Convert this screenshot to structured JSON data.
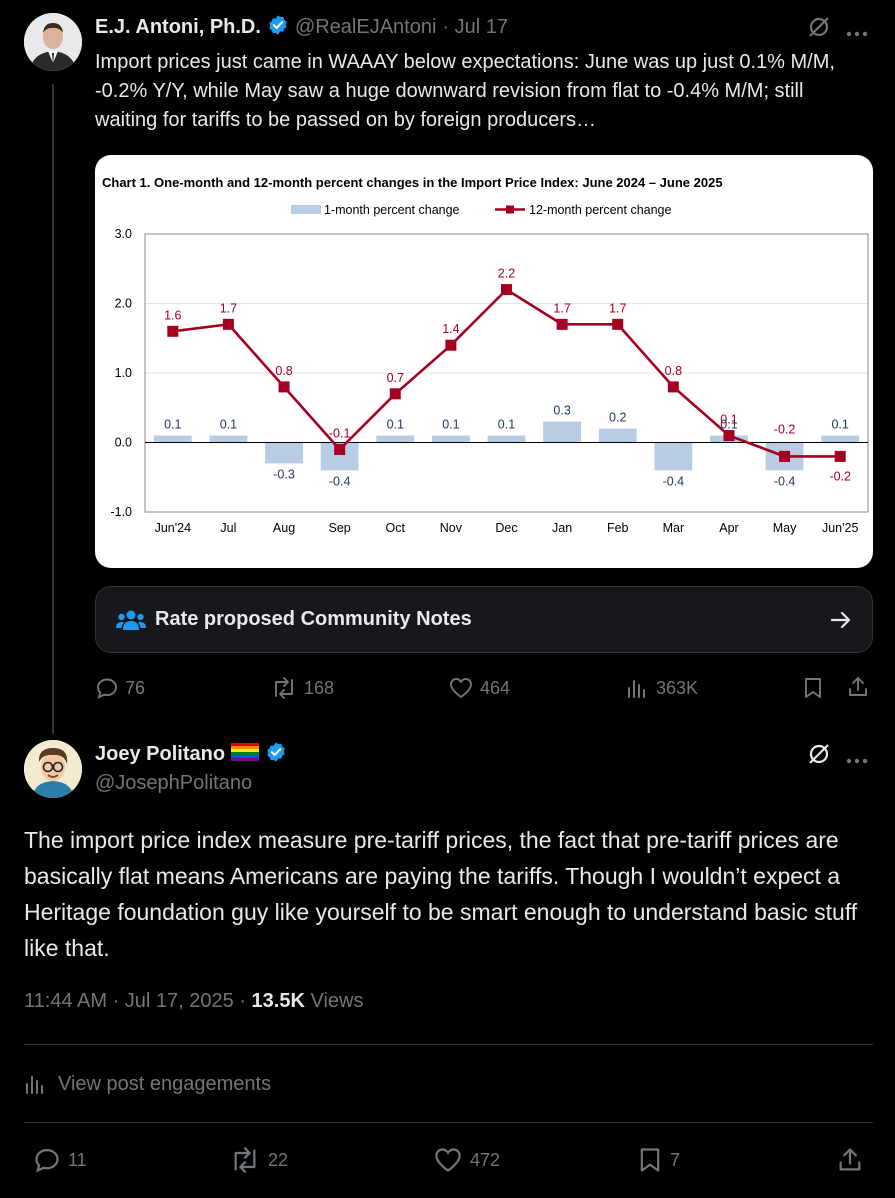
{
  "tweet1": {
    "name": "E.J. Antoni, Ph.D.",
    "handle": "@RealEJAntoni",
    "date": "· Jul 17",
    "text": "Import prices just came in WAAAY below expectations: June was up just 0.1% M/M, -0.2% Y/Y, while May saw a huge downward revision from flat to -0.4% M/M; still waiting for tariffs to be passed on by foreign producers…",
    "community_notes_label": "Rate proposed Community Notes",
    "replies": "76",
    "reposts": "168",
    "likes": "464",
    "views": "363K"
  },
  "tweet2": {
    "name": "Joey Politano",
    "handle": "@JosephPolitano",
    "text": "The import price index measure pre-tariff prices, the fact that pre-tariff prices are basically flat means Americans are paying the tariffs. Though I wouldn’t expect a Heritage foundation guy like yourself to be smart enough to understand basic stuff like that.",
    "time": "11:44 AM · Jul 17, 2025 · ",
    "views_count": "13.5K",
    "views_label": "Views",
    "engagements": "View post engagements",
    "replies": "11",
    "reposts": "22",
    "likes": "472",
    "bookmarks": "7"
  },
  "chart_data": {
    "type": "bar",
    "title": "Chart 1. One-month and 12-month percent changes in the Import Price Index: June 2024 – June 2025",
    "categories": [
      "Jun'24",
      "Jul",
      "Aug",
      "Sep",
      "Oct",
      "Nov",
      "Dec",
      "Jan",
      "Feb",
      "Mar",
      "Apr",
      "May",
      "Jun'25"
    ],
    "series": [
      {
        "name": "1-month percent change",
        "type": "bar",
        "color": "#b8cce4",
        "values": [
          0.1,
          0.1,
          -0.3,
          -0.4,
          0.1,
          0.1,
          0.1,
          0.3,
          0.2,
          -0.4,
          0.1,
          -0.4,
          0.1
        ],
        "labels": [
          "0.1",
          "0.1",
          "-0.3",
          "-0.4",
          "0.1",
          "0.1",
          "0.1",
          "0.3",
          "0.2",
          "-0.4",
          "0.1",
          "-0.4",
          "0.1"
        ]
      },
      {
        "name": "12-month percent change",
        "type": "line",
        "color": "#a50021",
        "values": [
          1.6,
          1.7,
          0.8,
          -0.1,
          0.7,
          1.4,
          2.2,
          1.7,
          1.7,
          0.8,
          0.1,
          -0.2,
          -0.2
        ],
        "labels": [
          "1.6",
          "1.7",
          "0.8",
          "-0.1",
          "0.7",
          "1.4",
          "2.2",
          "1.7",
          "1.7",
          "0.8",
          "0.1",
          "-0.2",
          "-0.2"
        ]
      }
    ],
    "yticks": [
      "3.0",
      "2.0",
      "1.0",
      "0.0",
      "-1.0"
    ],
    "ylim": [
      -1.0,
      3.0
    ],
    "legend": "top",
    "grid": true
  },
  "colors": {
    "accent": "#1d9bf0",
    "muted": "#71767b",
    "text": "#e7e9ea"
  }
}
